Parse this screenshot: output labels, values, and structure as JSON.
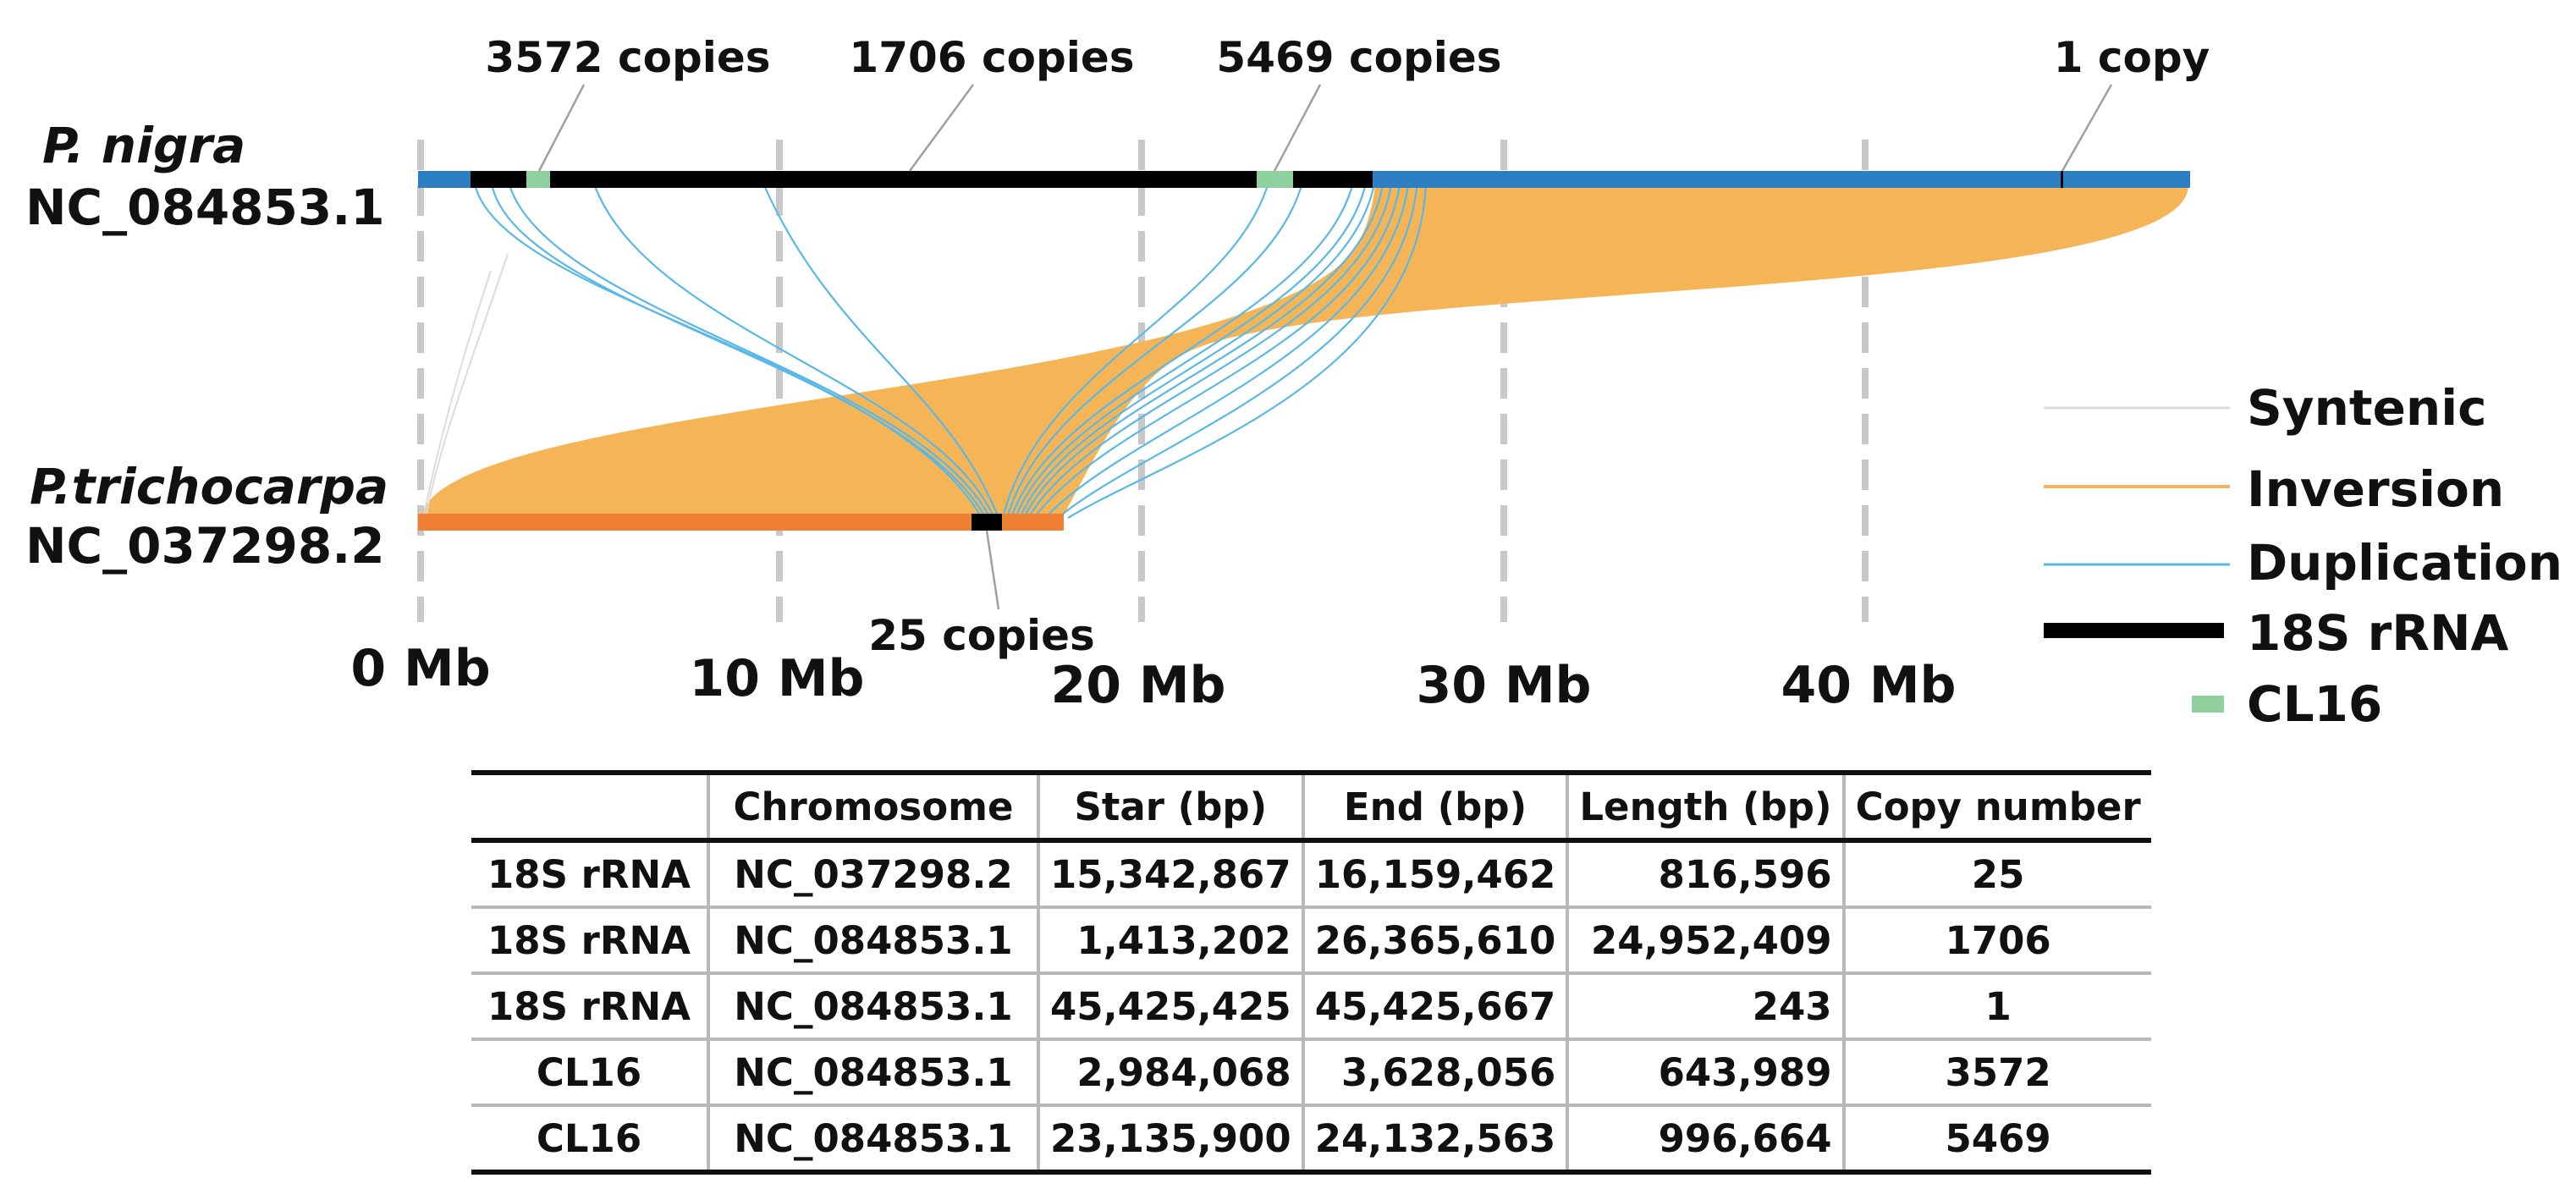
{
  "genomes": {
    "top": {
      "species": "P. nigra",
      "accession": "NC_084853.1"
    },
    "bottom": {
      "species": "P.trichocarpa",
      "accession": "NC_037298.2"
    }
  },
  "annotations": {
    "cl16_a": "3572 copies",
    "rrna_a": "1706 copies",
    "cl16_b": "5469 copies",
    "rrna_b": "1 copy",
    "rrna_c": "25 copies"
  },
  "axis": {
    "unit": "Mb",
    "ticks": [
      "0 Mb",
      "10 Mb",
      "20 Mb",
      "30 Mb",
      "40 Mb"
    ]
  },
  "legend": {
    "items": [
      {
        "label": "Syntenic",
        "color": "#dddddd"
      },
      {
        "label": "Inversion",
        "color": "#f5b556"
      },
      {
        "label": "Duplication",
        "color": "#5ab8e6"
      },
      {
        "label": "18S rRNA",
        "color": "#000000"
      },
      {
        "label": "CL16",
        "color": "#8fd19e"
      }
    ]
  },
  "colors": {
    "top_chromosome": "#2e7fc1",
    "bottom_chromosome": "#ef7f31",
    "inversion": "#f5b556",
    "duplication": "#5ab8e6",
    "rrna": "#000000",
    "cl16": "#8fd19e",
    "grid": "#c8c8c8"
  },
  "table": {
    "headers": [
      "",
      "Chromosome",
      "Star (bp)",
      "End (bp)",
      "Length (bp)",
      "Copy number"
    ],
    "rows": [
      [
        "18S rRNA",
        "NC_037298.2",
        "15,342,867",
        "16,159,462",
        "816,596",
        "25"
      ],
      [
        "18S rRNA",
        "NC_084853.1",
        "1,413,202",
        "26,365,610",
        "24,952,409",
        "1706"
      ],
      [
        "18S rRNA",
        "NC_084853.1",
        "45,425,425",
        "45,425,667",
        "243",
        "1"
      ],
      [
        "CL16",
        "NC_084853.1",
        "2,984,068",
        "3,628,056",
        "643,989",
        "3572"
      ],
      [
        "CL16",
        "NC_084853.1",
        "23,135,900",
        "24,132,563",
        "996,664",
        "5469"
      ]
    ]
  }
}
